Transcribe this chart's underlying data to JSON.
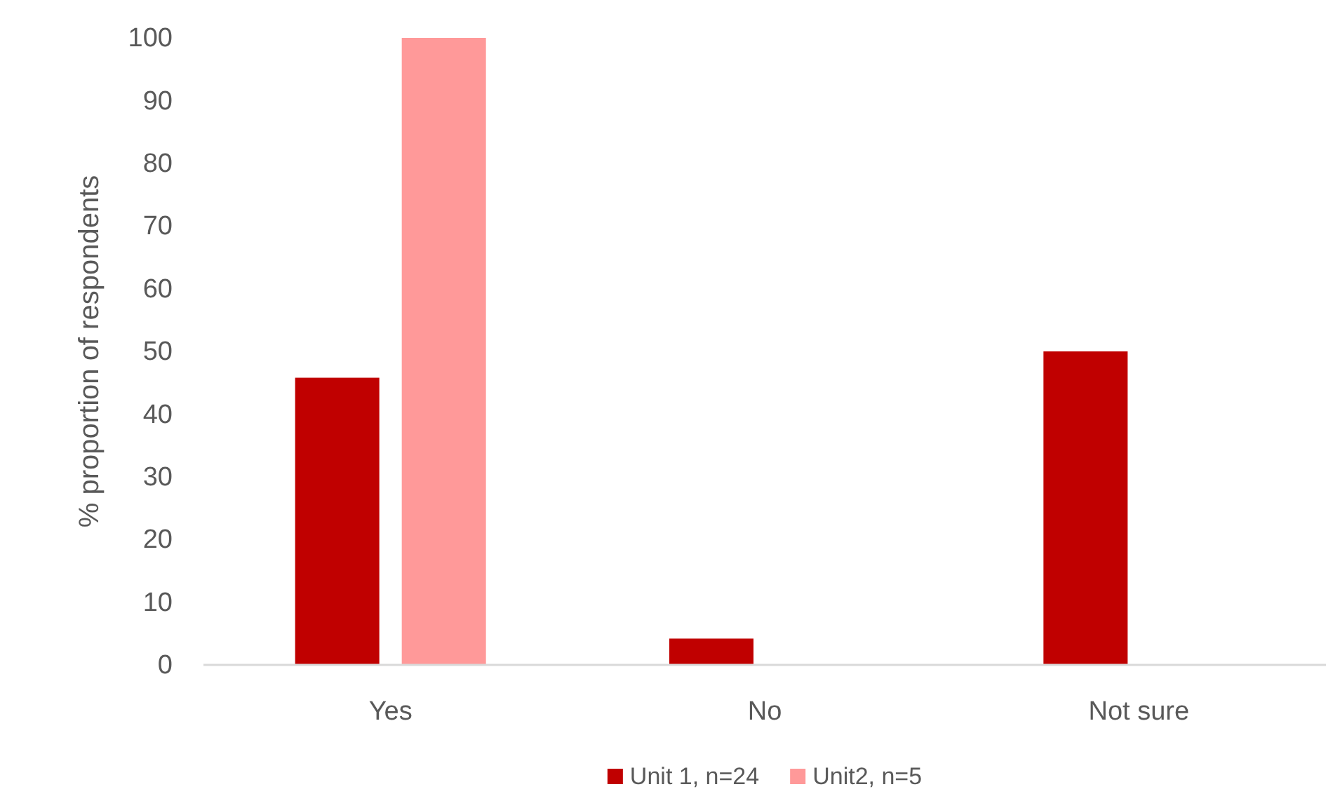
{
  "chart_data": {
    "type": "bar",
    "ylabel": "% proportion of respondents",
    "categories": [
      "Yes",
      "No",
      "Not sure"
    ],
    "series": [
      {
        "name": "Unit 1, n=24",
        "color": "#c00000",
        "values": [
          45.8,
          4.2,
          50
        ]
      },
      {
        "name": "Unit2, n=5",
        "color": "#ff9999",
        "values": [
          100,
          0,
          0
        ]
      }
    ],
    "ylim": [
      0,
      100
    ],
    "yticks": [
      0,
      10,
      20,
      30,
      40,
      50,
      60,
      70,
      80,
      90,
      100
    ],
    "grid": false,
    "legend": "bottom"
  }
}
